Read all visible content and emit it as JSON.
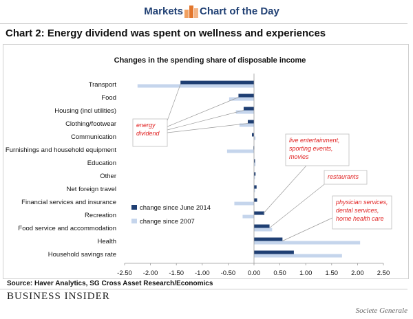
{
  "banner": {
    "left": "Markets",
    "right": "Chart of the Day"
  },
  "title": "Chart 2: Energy dividend was spent on wellness and experiences",
  "source": "Source: Haver Analytics, SG Cross Asset Research/Economics",
  "brand": "BUSINESS INSIDER",
  "credit": "Societe Generale",
  "colors": {
    "series1": "#1f3f73",
    "series2": "#c5d5ec",
    "annotation": "#e02020",
    "title": "#1f3f73"
  },
  "icons": {
    "logo": "bar-chart-logo"
  },
  "chart_data": {
    "type": "bar",
    "orientation": "horizontal",
    "title": "Changes in the spending share of disposable income",
    "categories": [
      "Transport",
      "Food",
      "Housing (incl utilities)",
      "Clothing/footwear",
      "Communication",
      "Furnishings and household equipment",
      "Education",
      "Other",
      "Net foreign  travel",
      "Financial services and insurance",
      "Recreation",
      "Food service and accommodation",
      "Health",
      "Household savings rate"
    ],
    "series": [
      {
        "name": "change since June 2014",
        "values": [
          -1.42,
          -0.3,
          -0.2,
          -0.12,
          -0.04,
          -0.01,
          0.02,
          0.03,
          0.05,
          0.06,
          0.2,
          0.3,
          0.55,
          0.77
        ]
      },
      {
        "name": "change since 2007",
        "values": [
          -2.25,
          -0.48,
          -0.35,
          -0.28,
          0.03,
          -0.52,
          0.03,
          0.02,
          0.02,
          -0.38,
          -0.22,
          0.35,
          2.05,
          1.7
        ]
      }
    ],
    "xlim": [
      -2.5,
      2.5
    ],
    "xticks": [
      "-2.50",
      "-2.00",
      "-1.50",
      "-1.00",
      "-0.50",
      "0.00",
      "0.50",
      "1.00",
      "1.50",
      "2.00",
      "2.50"
    ],
    "legend_position": "lower-left of plot area",
    "annotations": [
      {
        "lines": [
          "energy",
          "dividend"
        ],
        "points_to": [
          "Transport",
          "Food",
          "Housing (incl utilities)",
          "Clothing/footwear"
        ]
      },
      {
        "lines": [
          "live entertainment,",
          "sporting events,",
          "movies"
        ],
        "points_to": [
          "Recreation"
        ]
      },
      {
        "lines": [
          "restaurants"
        ],
        "points_to": [
          "Food service and accommodation"
        ]
      },
      {
        "lines": [
          "physician services,",
          "dental services,",
          "home health care"
        ],
        "points_to": [
          "Health"
        ]
      }
    ]
  }
}
